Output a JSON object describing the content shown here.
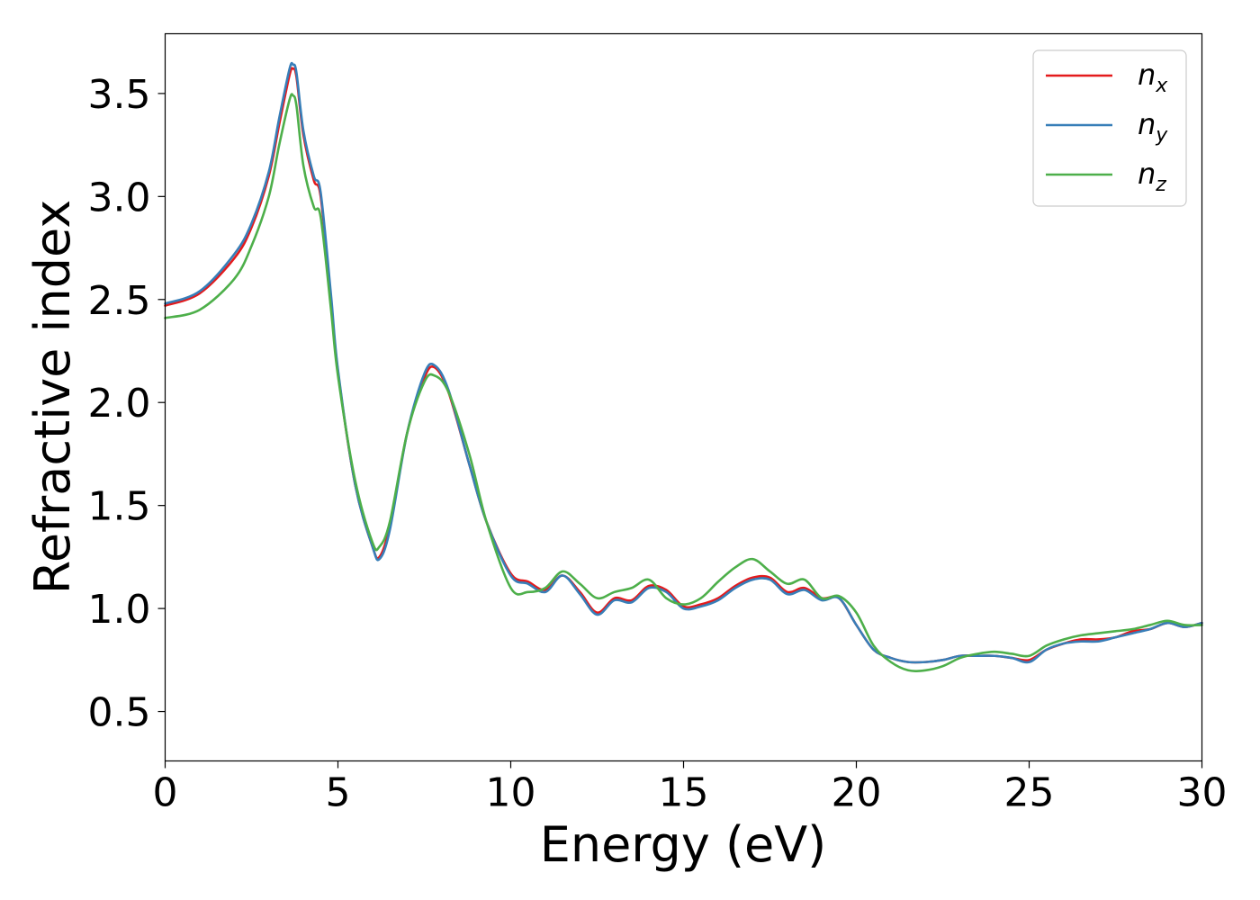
{
  "chart_data": {
    "type": "line",
    "xlabel": "Energy (eV)",
    "ylabel": "Refractive index",
    "xlim": [
      0,
      30
    ],
    "ylim": [
      0.26,
      3.79
    ],
    "xticks": [
      0,
      5,
      10,
      15,
      20,
      25,
      30
    ],
    "xtick_labels": [
      "0",
      "5",
      "10",
      "15",
      "20",
      "25",
      "30"
    ],
    "yticks": [
      0.5,
      1.0,
      1.5,
      2.0,
      2.5,
      3.0,
      3.5
    ],
    "ytick_labels": [
      "0.5",
      "1.0",
      "1.5",
      "2.0",
      "2.5",
      "3.0",
      "3.5"
    ],
    "grid": false,
    "legend_position": "top-right",
    "series": [
      {
        "name": "n",
        "subscript": "x",
        "color": "#e41a1c",
        "x": [
          0,
          1,
          2,
          2.5,
          3,
          3.3,
          3.6,
          3.7,
          3.8,
          4.0,
          4.3,
          4.5,
          4.8,
          5.0,
          5.5,
          6.0,
          6.2,
          6.5,
          7.0,
          7.5,
          7.8,
          8.2,
          8.8,
          9.3,
          10,
          10.5,
          11,
          11.5,
          12,
          12.5,
          13,
          13.5,
          14,
          14.5,
          15,
          15.5,
          16,
          16.5,
          17,
          17.5,
          18,
          18.5,
          19,
          19.5,
          20,
          20.5,
          21,
          21.5,
          22,
          22.5,
          23,
          23.5,
          24,
          24.5,
          25,
          25.5,
          26,
          26.5,
          27,
          27.5,
          28,
          28.5,
          29,
          29.5,
          30
        ],
        "y": [
          2.47,
          2.53,
          2.7,
          2.85,
          3.1,
          3.35,
          3.59,
          3.62,
          3.58,
          3.3,
          3.08,
          3.0,
          2.5,
          2.15,
          1.6,
          1.3,
          1.25,
          1.4,
          1.85,
          2.12,
          2.17,
          2.05,
          1.7,
          1.42,
          1.17,
          1.13,
          1.09,
          1.16,
          1.08,
          0.98,
          1.05,
          1.04,
          1.11,
          1.09,
          1.01,
          1.02,
          1.05,
          1.11,
          1.15,
          1.15,
          1.08,
          1.1,
          1.05,
          1.05,
          0.92,
          0.8,
          0.76,
          0.74,
          0.74,
          0.75,
          0.77,
          0.77,
          0.77,
          0.76,
          0.75,
          0.8,
          0.83,
          0.85,
          0.85,
          0.86,
          0.89,
          0.9,
          0.93,
          0.91,
          0.93
        ]
      },
      {
        "name": "n",
        "subscript": "y",
        "color": "#377eb8",
        "x": [
          0,
          1,
          2,
          2.5,
          3,
          3.3,
          3.6,
          3.7,
          3.8,
          4.0,
          4.3,
          4.5,
          4.8,
          5.0,
          5.5,
          6.0,
          6.2,
          6.5,
          7.0,
          7.5,
          7.8,
          8.2,
          8.8,
          9.3,
          10,
          10.5,
          11,
          11.5,
          12,
          12.5,
          13,
          13.5,
          14,
          14.5,
          15,
          15.5,
          16,
          16.5,
          17,
          17.5,
          18,
          18.5,
          19,
          19.5,
          20,
          20.5,
          21,
          21.5,
          22,
          22.5,
          23,
          23.5,
          24,
          24.5,
          25,
          25.5,
          26,
          26.5,
          27,
          27.5,
          28,
          28.5,
          29,
          29.5,
          30
        ],
        "y": [
          2.48,
          2.54,
          2.72,
          2.87,
          3.12,
          3.38,
          3.62,
          3.64,
          3.6,
          3.32,
          3.1,
          3.02,
          2.52,
          2.16,
          1.6,
          1.3,
          1.24,
          1.38,
          1.85,
          2.14,
          2.18,
          2.06,
          1.7,
          1.42,
          1.16,
          1.12,
          1.08,
          1.16,
          1.07,
          0.97,
          1.04,
          1.03,
          1.1,
          1.08,
          1.0,
          1.01,
          1.04,
          1.1,
          1.14,
          1.14,
          1.07,
          1.09,
          1.04,
          1.05,
          0.92,
          0.8,
          0.76,
          0.74,
          0.74,
          0.75,
          0.77,
          0.77,
          0.77,
          0.76,
          0.74,
          0.8,
          0.83,
          0.84,
          0.84,
          0.86,
          0.88,
          0.9,
          0.93,
          0.91,
          0.93
        ]
      },
      {
        "name": "n",
        "subscript": "z",
        "color": "#4daf4a",
        "x": [
          0,
          1,
          2,
          2.5,
          3,
          3.3,
          3.6,
          3.7,
          3.8,
          4.0,
          4.3,
          4.5,
          4.8,
          5.0,
          5.5,
          6.0,
          6.2,
          6.5,
          7.0,
          7.5,
          7.8,
          8.2,
          8.8,
          9.3,
          10,
          10.5,
          11,
          11.5,
          12,
          12.5,
          13,
          13.5,
          14,
          14.5,
          15,
          15.5,
          16,
          16.5,
          17,
          17.5,
          18,
          18.5,
          19,
          19.5,
          20,
          20.5,
          21,
          21.5,
          22,
          22.5,
          23,
          23.5,
          24,
          24.5,
          25,
          25.5,
          26,
          26.5,
          27,
          27.5,
          28,
          28.5,
          29,
          29.5,
          30
        ],
        "y": [
          2.41,
          2.45,
          2.6,
          2.76,
          3.0,
          3.25,
          3.47,
          3.49,
          3.44,
          3.15,
          2.95,
          2.9,
          2.45,
          2.13,
          1.62,
          1.32,
          1.3,
          1.42,
          1.85,
          2.1,
          2.13,
          2.05,
          1.75,
          1.42,
          1.1,
          1.08,
          1.1,
          1.18,
          1.12,
          1.05,
          1.08,
          1.1,
          1.14,
          1.05,
          1.02,
          1.05,
          1.13,
          1.2,
          1.24,
          1.18,
          1.12,
          1.14,
          1.05,
          1.06,
          0.98,
          0.82,
          0.74,
          0.7,
          0.7,
          0.72,
          0.76,
          0.78,
          0.79,
          0.78,
          0.77,
          0.82,
          0.85,
          0.87,
          0.88,
          0.89,
          0.9,
          0.92,
          0.94,
          0.92,
          0.92
        ]
      }
    ]
  }
}
